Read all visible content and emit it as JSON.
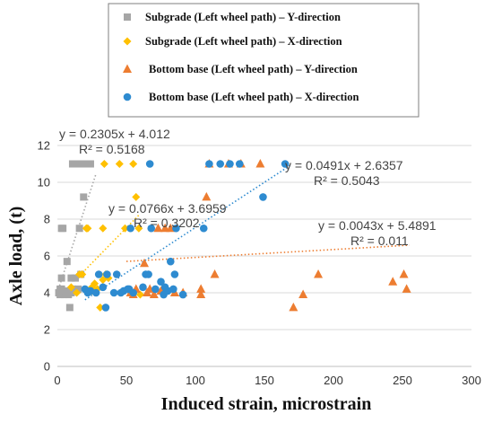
{
  "chart_data": {
    "type": "scatter",
    "xlabel": "Induced strain, microstrain",
    "ylabel": "Axle load, (t)",
    "xlim": [
      0,
      300
    ],
    "ylim": [
      0,
      12
    ],
    "xticks": [
      "0",
      "50",
      "100",
      "150",
      "200",
      "250",
      "300"
    ],
    "yticks": [
      "0",
      "2",
      "4",
      "6",
      "8",
      "10",
      "12"
    ],
    "grid": "horizontal",
    "legend_position": "top, boxed",
    "series": [
      {
        "name": "Subgrade (Left wheel path) – Y-direction",
        "marker": "square",
        "color": "#a6a6a6",
        "points": [
          [
            1,
            4.0
          ],
          [
            2,
            4.2
          ],
          [
            2,
            3.9
          ],
          [
            3,
            4.8
          ],
          [
            3,
            4.2
          ],
          [
            4,
            4.0
          ],
          [
            5,
            3.9
          ],
          [
            6,
            4.1
          ],
          [
            3,
            7.5
          ],
          [
            4,
            7.5
          ],
          [
            7,
            5.7
          ],
          [
            8,
            4.0
          ],
          [
            8,
            3.9
          ],
          [
            9,
            3.2
          ],
          [
            10,
            4.0
          ],
          [
            10,
            4.8
          ],
          [
            11,
            4.2
          ],
          [
            11,
            11.0
          ],
          [
            13,
            11.0
          ],
          [
            15,
            11.0
          ],
          [
            17,
            11.0
          ],
          [
            19,
            11.0
          ],
          [
            21,
            11.0
          ],
          [
            24,
            11.0
          ],
          [
            13,
            4.8
          ],
          [
            16,
            7.5
          ],
          [
            19,
            9.2
          ],
          [
            15,
            4.2
          ],
          [
            17,
            5.0
          ]
        ]
      },
      {
        "name": "Subgrade (Left wheel path) – X-direction",
        "marker": "diamond",
        "color": "#ffc000",
        "points": [
          [
            10,
            4.3
          ],
          [
            14,
            4.0
          ],
          [
            16,
            5.0
          ],
          [
            18,
            5.0
          ],
          [
            21,
            7.5
          ],
          [
            22,
            7.5
          ],
          [
            25,
            4.1
          ],
          [
            27,
            4.5
          ],
          [
            29,
            4.2
          ],
          [
            31,
            3.2
          ],
          [
            33,
            4.7
          ],
          [
            35,
            5.0
          ],
          [
            33,
            7.5
          ],
          [
            34,
            11.0
          ],
          [
            45,
            11.0
          ],
          [
            49,
            7.5
          ],
          [
            55,
            11.0
          ],
          [
            57,
            9.2
          ],
          [
            59,
            7.5
          ],
          [
            60,
            3.9
          ],
          [
            37,
            4.8
          ],
          [
            25,
            4.3
          ]
        ]
      },
      {
        "name": "Bottom base (Left wheel path) – Y-direction",
        "marker": "triangle",
        "color": "#ed7d31",
        "points": [
          [
            53,
            4.0
          ],
          [
            55,
            3.9
          ],
          [
            57,
            4.2
          ],
          [
            63,
            5.6
          ],
          [
            65,
            4.0
          ],
          [
            67,
            4.2
          ],
          [
            70,
            3.9
          ],
          [
            73,
            7.5
          ],
          [
            75,
            4.1
          ],
          [
            78,
            7.5
          ],
          [
            82,
            7.5
          ],
          [
            85,
            4.0
          ],
          [
            91,
            4.0
          ],
          [
            104,
            3.9
          ],
          [
            104,
            4.2
          ],
          [
            108,
            9.2
          ],
          [
            110,
            11.0
          ],
          [
            114,
            5.0
          ],
          [
            124,
            11.0
          ],
          [
            133,
            11.0
          ],
          [
            147,
            11.0
          ],
          [
            171,
            3.2
          ],
          [
            178,
            3.9
          ],
          [
            189,
            5.0
          ],
          [
            243,
            4.6
          ],
          [
            251,
            5.0
          ],
          [
            253,
            4.2
          ]
        ]
      },
      {
        "name": "Bottom base (Left wheel path) – X-direction",
        "marker": "circle",
        "color": "#2e8bd0",
        "points": [
          [
            20,
            4.2
          ],
          [
            24,
            4.1
          ],
          [
            28,
            4.0
          ],
          [
            30,
            5.0
          ],
          [
            33,
            4.3
          ],
          [
            35,
            3.2
          ],
          [
            36,
            5.0
          ],
          [
            41,
            4.0
          ],
          [
            46,
            4.0
          ],
          [
            48,
            4.1
          ],
          [
            51,
            4.2
          ],
          [
            52,
            4.2
          ],
          [
            53,
            7.5
          ],
          [
            55,
            4.0
          ],
          [
            62,
            4.3
          ],
          [
            64,
            5.0
          ],
          [
            66,
            5.0
          ],
          [
            68,
            7.5
          ],
          [
            71,
            4.2
          ],
          [
            75,
            4.6
          ],
          [
            77,
            3.9
          ],
          [
            79,
            4.1
          ],
          [
            82,
            5.7
          ],
          [
            84,
            4.2
          ],
          [
            85,
            5.0
          ],
          [
            86,
            7.5
          ],
          [
            91,
            3.9
          ],
          [
            106,
            7.5
          ],
          [
            110,
            11.0
          ],
          [
            118,
            11.0
          ],
          [
            125,
            11.0
          ],
          [
            132,
            11.0
          ],
          [
            149,
            9.2
          ],
          [
            165,
            11.0
          ],
          [
            67,
            11.0
          ],
          [
            78,
            4.3
          ],
          [
            80,
            4.1
          ],
          [
            43,
            5.0
          ],
          [
            22,
            4.0
          ]
        ]
      }
    ],
    "trendlines": [
      {
        "series": "Subgrade (Left wheel path) – Y-direction",
        "slope": 0.2305,
        "intercept": 4.012,
        "x_range": [
          0,
          28
        ],
        "equation": "y = 0.2305x + 4.012",
        "r2": "R² = 0.5168"
      },
      {
        "series": "Subgrade (Left wheel path) – X-direction",
        "slope": 0.0766,
        "intercept": 3.6959,
        "x_range": [
          20,
          60
        ],
        "equation": "y = 0.0766x + 3.6959",
        "r2": "R² = 0.3202"
      },
      {
        "series": "Bottom base (Left wheel path) – Y-direction",
        "slope": 0.0043,
        "intercept": 5.4891,
        "x_range": [
          50,
          255
        ],
        "equation": "y = 0.0043x + 5.4891",
        "r2": "R² = 0.011"
      },
      {
        "series": "Bottom base (Left wheel path) – X-direction",
        "slope": 0.0491,
        "intercept": 2.6357,
        "x_range": [
          20,
          170
        ],
        "equation": "y = 0.0491x + 2.6357",
        "r2": "R² = 0.5043"
      }
    ]
  }
}
